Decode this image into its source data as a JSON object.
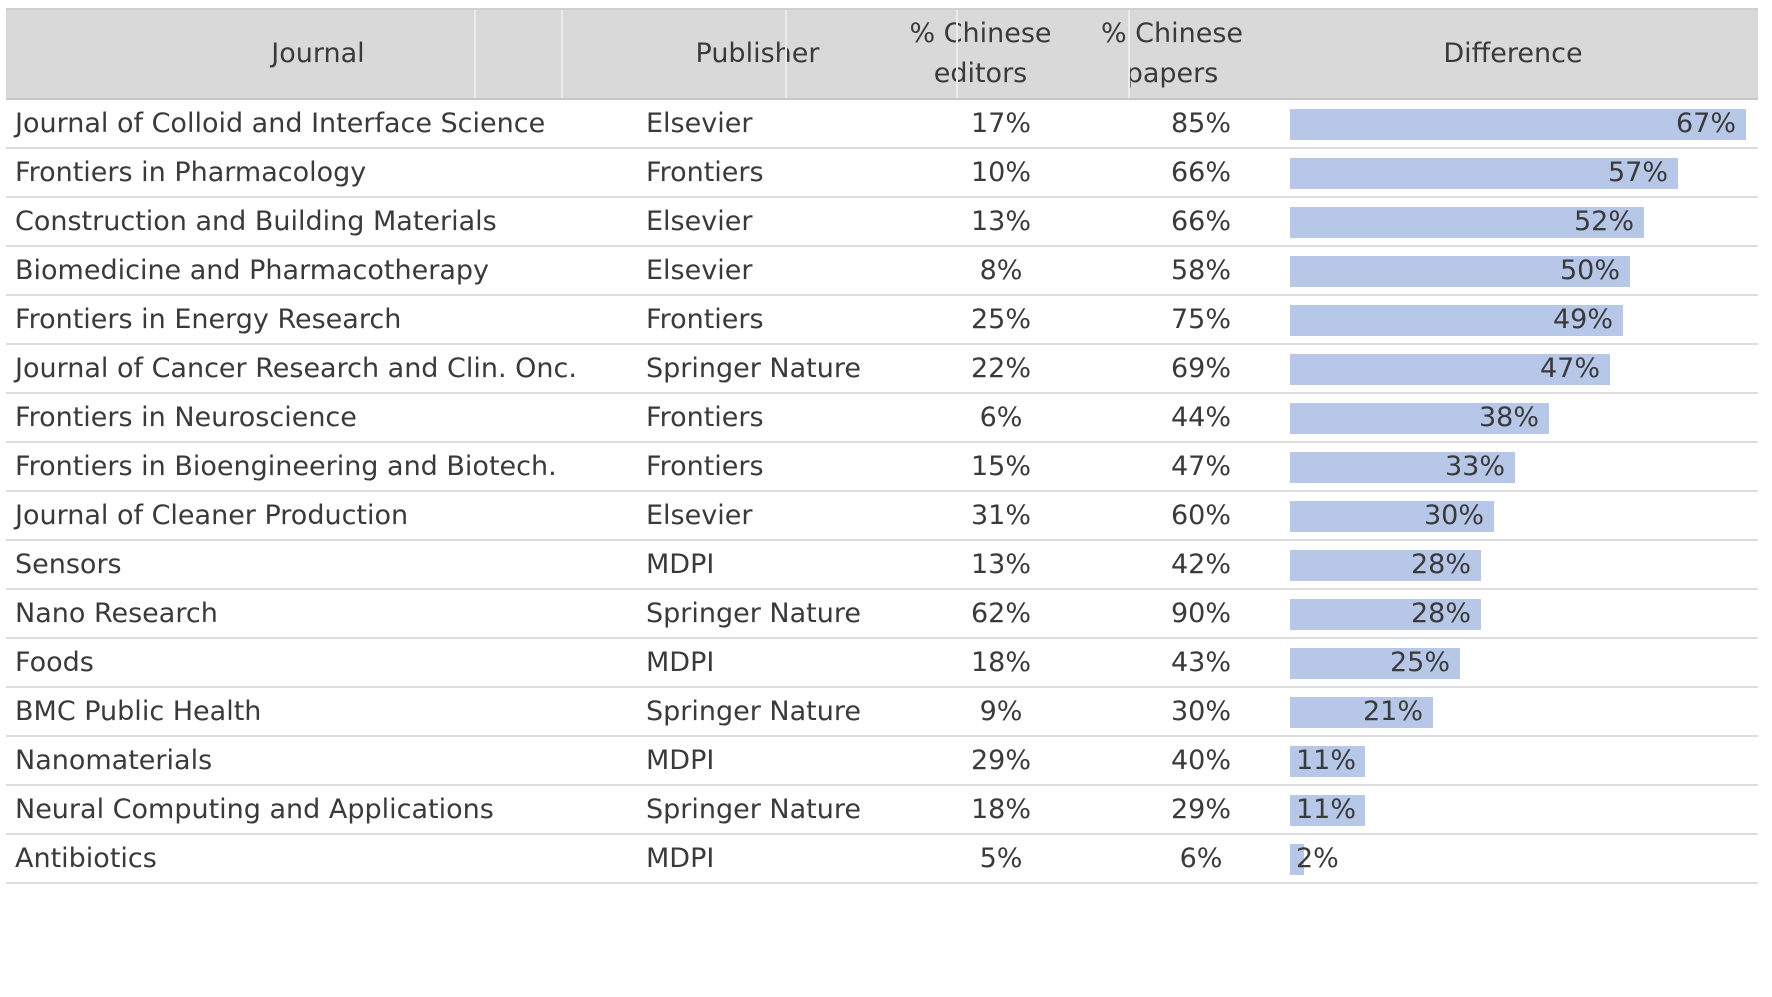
{
  "chart_data": {
    "type": "table",
    "columns": [
      "Journal",
      "Publisher",
      "% Chinese\neditors",
      "% Chinese\npapers",
      "Difference"
    ],
    "difference_bar_color": "#b7c7e7",
    "header_background": "#d9d9d9",
    "rows": [
      {
        "journal": "Journal of Colloid and Interface Science",
        "publisher": "Elsevier",
        "editors": "17%",
        "papers": "85%",
        "difference_label": "67%",
        "difference": 67
      },
      {
        "journal": "Frontiers in Pharmacology",
        "publisher": "Frontiers",
        "editors": "10%",
        "papers": "66%",
        "difference_label": "57%",
        "difference": 57
      },
      {
        "journal": "Construction and Building Materials",
        "publisher": "Elsevier",
        "editors": "13%",
        "papers": "66%",
        "difference_label": "52%",
        "difference": 52
      },
      {
        "journal": "Biomedicine and Pharmacotherapy",
        "publisher": "Elsevier",
        "editors": "8%",
        "papers": "58%",
        "difference_label": "50%",
        "difference": 50
      },
      {
        "journal": "Frontiers in Energy Research",
        "publisher": "Frontiers",
        "editors": "25%",
        "papers": "75%",
        "difference_label": "49%",
        "difference": 49
      },
      {
        "journal": "Journal of Cancer Research and Clin. Onc.",
        "publisher": "Springer Nature",
        "editors": "22%",
        "papers": "69%",
        "difference_label": "47%",
        "difference": 47
      },
      {
        "journal": "Frontiers in Neuroscience",
        "publisher": "Frontiers",
        "editors": "6%",
        "papers": "44%",
        "difference_label": "38%",
        "difference": 38
      },
      {
        "journal": "Frontiers in Bioengineering and Biotech.",
        "publisher": "Frontiers",
        "editors": "15%",
        "papers": "47%",
        "difference_label": "33%",
        "difference": 33
      },
      {
        "journal": "Journal of Cleaner Production",
        "publisher": "Elsevier",
        "editors": "31%",
        "papers": "60%",
        "difference_label": "30%",
        "difference": 30
      },
      {
        "journal": "Sensors",
        "publisher": "MDPI",
        "editors": "13%",
        "papers": "42%",
        "difference_label": "28%",
        "difference": 28
      },
      {
        "journal": "Nano Research",
        "publisher": "Springer Nature",
        "editors": "62%",
        "papers": "90%",
        "difference_label": "28%",
        "difference": 28
      },
      {
        "journal": "Foods",
        "publisher": "MDPI",
        "editors": "18%",
        "papers": "43%",
        "difference_label": "25%",
        "difference": 25
      },
      {
        "journal": "BMC Public Health",
        "publisher": "Springer Nature",
        "editors": "9%",
        "papers": "30%",
        "difference_label": "21%",
        "difference": 21
      },
      {
        "journal": "Nanomaterials",
        "publisher": "MDPI",
        "editors": "29%",
        "papers": "40%",
        "difference_label": "11%",
        "difference": 11
      },
      {
        "journal": "Neural Computing and Applications",
        "publisher": "Springer Nature",
        "editors": "18%",
        "papers": "29%",
        "difference_label": "11%",
        "difference": 11
      },
      {
        "journal": "Antibiotics",
        "publisher": "MDPI",
        "editors": "5%",
        "papers": "6%",
        "difference_label": "2%",
        "difference": 2
      }
    ]
  }
}
